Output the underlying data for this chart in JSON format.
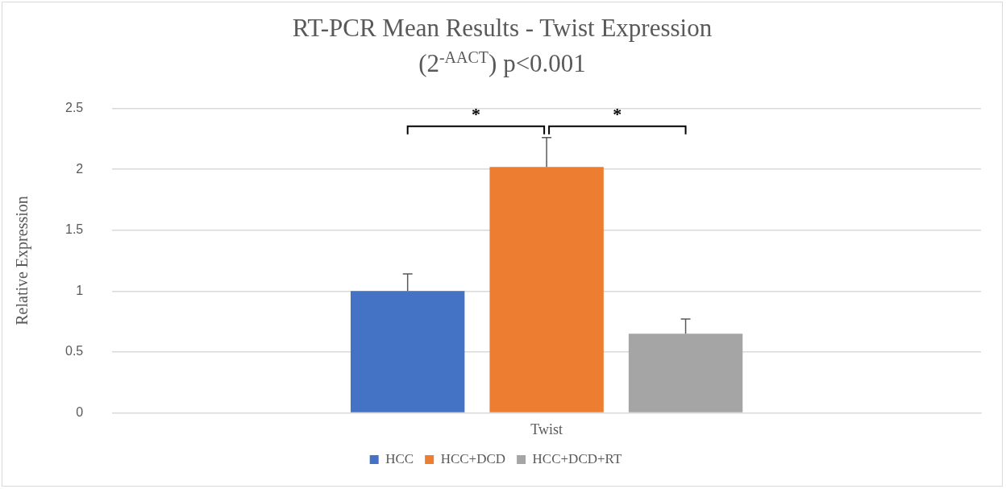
{
  "chart_data": {
    "type": "bar",
    "title": "RT-PCR Mean Results - Twist Expression",
    "subtitle": "(2$^{-AACT}$) p<0.001",
    "ylabel": "Relative Expression",
    "categories": [
      "Twist"
    ],
    "series": [
      {
        "name": "HCC",
        "color": "#4472c4",
        "values": [
          1.0
        ],
        "errors": [
          [
            1.0,
            1.14
          ]
        ]
      },
      {
        "name": "HCC+DCD",
        "color": "#ed7d31",
        "values": [
          2.02
        ],
        "errors": [
          [
            2.02,
            2.26
          ]
        ]
      },
      {
        "name": "HCC+DCD+RT",
        "color": "#a5a5a5",
        "values": [
          0.65
        ],
        "errors": [
          [
            0.65,
            0.77
          ]
        ]
      }
    ],
    "ylim": [
      0,
      2.5
    ],
    "yticks": [
      0,
      0.5,
      1,
      1.5,
      2,
      2.5
    ],
    "grid": "y",
    "legend": "bottom",
    "annotations": [
      "*",
      "*"
    ]
  }
}
